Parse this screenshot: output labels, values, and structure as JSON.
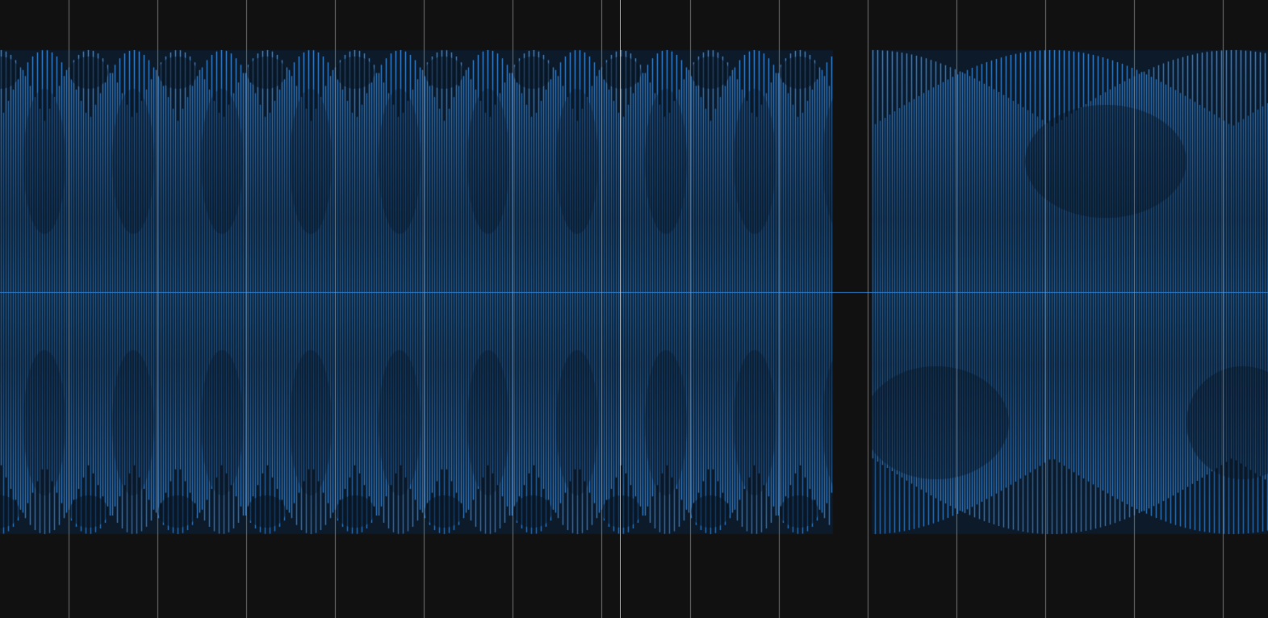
{
  "editor": {
    "colors": {
      "background": "#111111",
      "waveform": "#2f86e0",
      "waveform_dark": "#0d2740",
      "grid_line": "#9a9a9a",
      "playhead": "#d9d9d9",
      "baseline": "#2a7fd4"
    },
    "grid": {
      "visible": true
    },
    "playhead": {
      "visible": true
    },
    "clips": [
      {
        "name": "",
        "pattern": "beating"
      },
      {
        "name": "",
        "pattern": "crossing"
      }
    ]
  }
}
